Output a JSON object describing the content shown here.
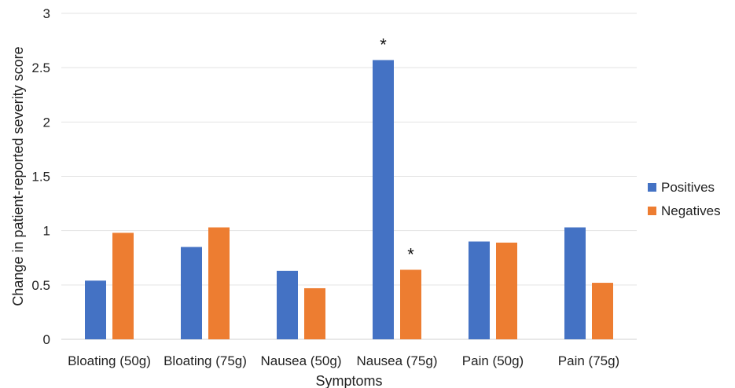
{
  "chart_data": {
    "type": "bar",
    "title": "",
    "xlabel": "Symptoms",
    "ylabel": "Change in patient-reported severity score",
    "ylim": [
      0,
      3
    ],
    "yticks": [
      0,
      0.5,
      1,
      1.5,
      2,
      2.5,
      3
    ],
    "ytick_labels": [
      "0",
      "0.5",
      "1",
      "1.5",
      "2",
      "2.5",
      "3"
    ],
    "grid": true,
    "legend_position": "right",
    "categories": [
      "Bloating (50g)",
      "Bloating (75g)",
      "Nausea (50g)",
      "Nausea (75g)",
      "Pain (50g)",
      "Pain (75g)"
    ],
    "series": [
      {
        "name": "Positives",
        "color": "#4472C4",
        "values": [
          0.54,
          0.85,
          0.63,
          2.57,
          0.9,
          1.03
        ]
      },
      {
        "name": "Negatives",
        "color": "#ED7D31",
        "values": [
          0.98,
          1.03,
          0.47,
          0.64,
          0.89,
          0.52
        ]
      }
    ],
    "annotations": [
      {
        "text": "*",
        "category": "Nausea (75g)",
        "series": "Positives"
      },
      {
        "text": "*",
        "category": "Nausea (75g)",
        "series": "Negatives"
      }
    ]
  }
}
